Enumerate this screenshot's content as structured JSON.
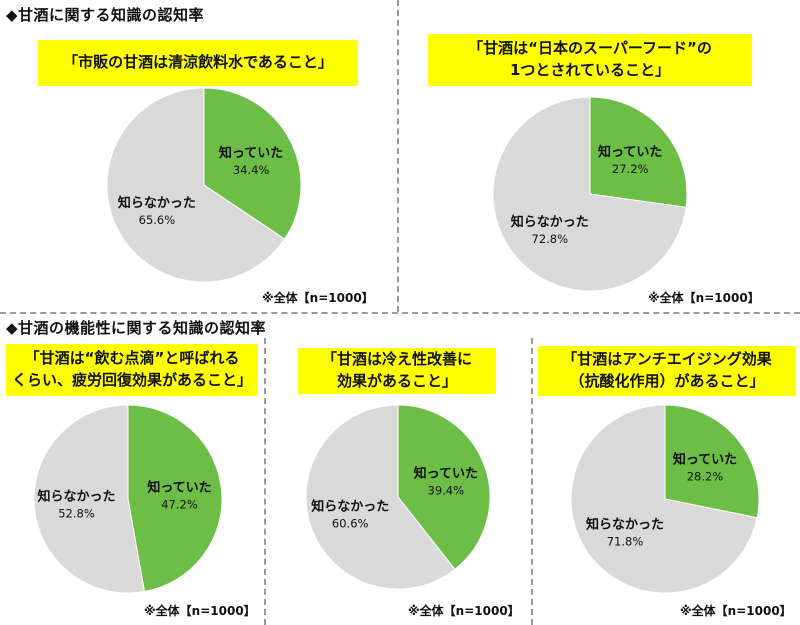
{
  "section1": {
    "title": "◆甘酒に関する知識の認知率"
  },
  "section2": {
    "title": "◆甘酒の機能性に関する知識の認知率"
  },
  "legend": {
    "known": "知っていた",
    "unknown": "知らなかった"
  },
  "colors": {
    "known": "#6dbe46",
    "unknown": "#d9d9d9",
    "banner": "#ffff00"
  },
  "chart_data": [
    {
      "type": "pie",
      "title": "「市販の甘酒は清涼飲料水であること」",
      "note": "※全体【n=1000】",
      "slices": [
        {
          "label": "知っていた",
          "value": 34.4,
          "display": "34.4%"
        },
        {
          "label": "知らなかった",
          "value": 65.6,
          "display": "65.6%"
        }
      ]
    },
    {
      "type": "pie",
      "title": "「甘酒は“日本のスーパーフード”の\n1つとされていること」",
      "note": "※全体【n=1000】",
      "slices": [
        {
          "label": "知っていた",
          "value": 27.2,
          "display": "27.2%"
        },
        {
          "label": "知らなかった",
          "value": 72.8,
          "display": "72.8%"
        }
      ]
    },
    {
      "type": "pie",
      "title": "「甘酒は“飲む点滴”と呼ばれる\nくらい、疲労回復効果があること」",
      "note": "※全体【n=1000】",
      "slices": [
        {
          "label": "知っていた",
          "value": 47.2,
          "display": "47.2%"
        },
        {
          "label": "知らなかった",
          "value": 52.8,
          "display": "52.8%"
        }
      ]
    },
    {
      "type": "pie",
      "title": "「甘酒は冷え性改善に\n効果があること」",
      "note": "※全体【n=1000】",
      "slices": [
        {
          "label": "知っていた",
          "value": 39.4,
          "display": "39.4%"
        },
        {
          "label": "知らなかった",
          "value": 60.6,
          "display": "60.6%"
        }
      ]
    },
    {
      "type": "pie",
      "title": "「甘酒はアンチエイジング効果\n（抗酸化作用）があること」",
      "note": "※全体【n=1000】",
      "slices": [
        {
          "label": "知っていた",
          "value": 28.2,
          "display": "28.2%"
        },
        {
          "label": "知らなかった",
          "value": 71.8,
          "display": "71.8%"
        }
      ]
    }
  ]
}
